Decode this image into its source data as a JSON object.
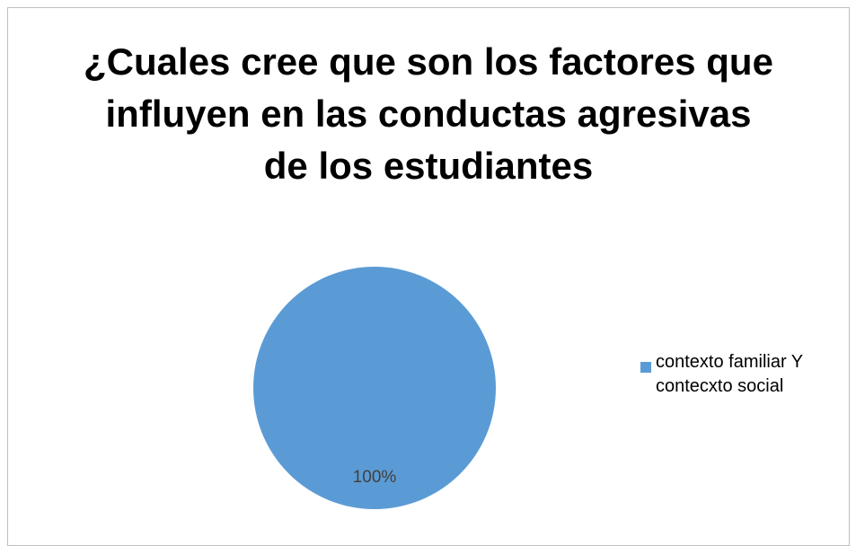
{
  "chart_data": {
    "type": "pie",
    "title": "¿Cuales cree que son los factores que\ninfluyen en las conductas agresivas\nde los estudiantes",
    "categories": [
      "contexto familiar Y contecxto social"
    ],
    "values": [
      100
    ],
    "value_labels": [
      "100%"
    ],
    "colors": [
      "#5b9bd5"
    ],
    "legend": "right"
  }
}
